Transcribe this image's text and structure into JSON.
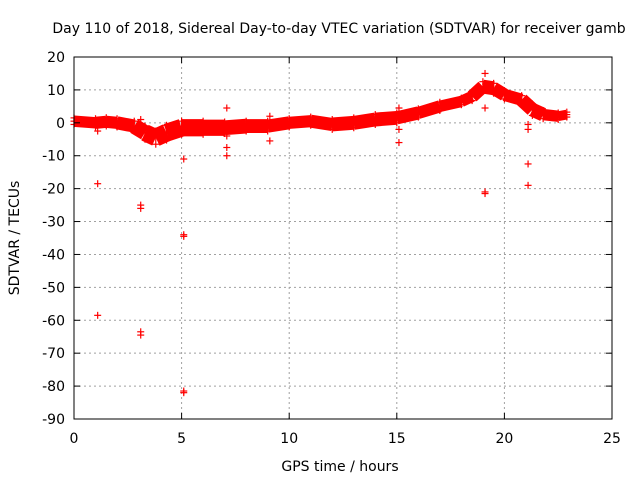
{
  "chart_data": {
    "type": "scatter",
    "title": "Day 110 of 2018, Sidereal Day-to-day VTEC variation (SDTVAR) for receiver gamb",
    "xlabel": "GPS time / hours",
    "ylabel": "SDTVAR / TECUs",
    "xlim": [
      0,
      25
    ],
    "ylim": [
      -90,
      20
    ],
    "xticks": [
      0,
      5,
      10,
      15,
      20,
      25
    ],
    "yticks": [
      -90,
      -80,
      -70,
      -60,
      -50,
      -40,
      -30,
      -20,
      -10,
      0,
      10,
      20
    ],
    "xtick_labels": [
      "0",
      "5",
      "10",
      "15",
      "20",
      "25"
    ],
    "ytick_labels": [
      "-90",
      "-80",
      "-70",
      "-60",
      "-50",
      "-40",
      "-30",
      "-20",
      "-10",
      "0",
      "10",
      "20"
    ],
    "grid": true,
    "marker": "+",
    "color": "#ff0000",
    "series": [
      {
        "name": "SDTVAR",
        "band": [
          {
            "x": 0.0,
            "y": 0.5,
            "spread": 2.0
          },
          {
            "x": 1.0,
            "y": 0.0,
            "spread": 2.5
          },
          {
            "x": 1.5,
            "y": 0.3,
            "spread": 2.5
          },
          {
            "x": 2.0,
            "y": 0.0,
            "spread": 2.5
          },
          {
            "x": 2.8,
            "y": -1.0,
            "spread": 3.0
          },
          {
            "x": 3.3,
            "y": -3.0,
            "spread": 4.0
          },
          {
            "x": 3.8,
            "y": -4.5,
            "spread": 4.0
          },
          {
            "x": 4.3,
            "y": -3.0,
            "spread": 4.5
          },
          {
            "x": 5.0,
            "y": -1.5,
            "spread": 4.0
          },
          {
            "x": 6.0,
            "y": -1.5,
            "spread": 4.0
          },
          {
            "x": 7.0,
            "y": -1.5,
            "spread": 3.5
          },
          {
            "x": 8.0,
            "y": -1.0,
            "spread": 3.0
          },
          {
            "x": 9.0,
            "y": -1.0,
            "spread": 3.0
          },
          {
            "x": 10.0,
            "y": 0.0,
            "spread": 2.5
          },
          {
            "x": 11.0,
            "y": 0.5,
            "spread": 2.5
          },
          {
            "x": 12.0,
            "y": -0.5,
            "spread": 3.0
          },
          {
            "x": 13.0,
            "y": 0.0,
            "spread": 3.0
          },
          {
            "x": 14.0,
            "y": 1.0,
            "spread": 3.0
          },
          {
            "x": 15.0,
            "y": 1.5,
            "spread": 3.0
          },
          {
            "x": 16.0,
            "y": 3.0,
            "spread": 2.5
          },
          {
            "x": 17.0,
            "y": 5.0,
            "spread": 2.5
          },
          {
            "x": 18.0,
            "y": 6.5,
            "spread": 2.0
          },
          {
            "x": 18.5,
            "y": 8.0,
            "spread": 2.5
          },
          {
            "x": 19.0,
            "y": 11.0,
            "spread": 3.0
          },
          {
            "x": 19.5,
            "y": 10.5,
            "spread": 3.0
          },
          {
            "x": 20.0,
            "y": 8.5,
            "spread": 2.5
          },
          {
            "x": 20.8,
            "y": 7.0,
            "spread": 2.5
          },
          {
            "x": 21.3,
            "y": 4.0,
            "spread": 3.5
          },
          {
            "x": 21.8,
            "y": 2.5,
            "spread": 2.5
          },
          {
            "x": 22.5,
            "y": 2.0,
            "spread": 2.0
          },
          {
            "x": 22.9,
            "y": 2.5,
            "spread": 1.5
          }
        ],
        "outliers": [
          {
            "x": 1.1,
            "y": -18.5
          },
          {
            "x": 1.1,
            "y": -58.5
          },
          {
            "x": 1.1,
            "y": -2.5
          },
          {
            "x": 3.1,
            "y": -25.0
          },
          {
            "x": 3.1,
            "y": -26.0
          },
          {
            "x": 3.1,
            "y": -63.5
          },
          {
            "x": 3.1,
            "y": -64.5
          },
          {
            "x": 3.1,
            "y": 1.0
          },
          {
            "x": 5.1,
            "y": -11.0
          },
          {
            "x": 5.1,
            "y": -34.0
          },
          {
            "x": 5.1,
            "y": -34.5
          },
          {
            "x": 5.1,
            "y": -81.5
          },
          {
            "x": 5.1,
            "y": -82.0
          },
          {
            "x": 7.1,
            "y": 4.5
          },
          {
            "x": 7.1,
            "y": -7.5
          },
          {
            "x": 7.1,
            "y": -10.0
          },
          {
            "x": 7.1,
            "y": -4.0
          },
          {
            "x": 9.1,
            "y": 2.0
          },
          {
            "x": 9.1,
            "y": -5.5
          },
          {
            "x": 15.1,
            "y": 4.5
          },
          {
            "x": 15.1,
            "y": -2.0
          },
          {
            "x": 15.1,
            "y": -6.0
          },
          {
            "x": 19.1,
            "y": 15.0
          },
          {
            "x": 19.1,
            "y": 4.5
          },
          {
            "x": 19.1,
            "y": -21.0
          },
          {
            "x": 19.1,
            "y": -21.5
          },
          {
            "x": 21.1,
            "y": -0.5
          },
          {
            "x": 21.1,
            "y": -2.0
          },
          {
            "x": 21.1,
            "y": -12.5
          },
          {
            "x": 21.1,
            "y": -19.0
          }
        ]
      }
    ]
  }
}
